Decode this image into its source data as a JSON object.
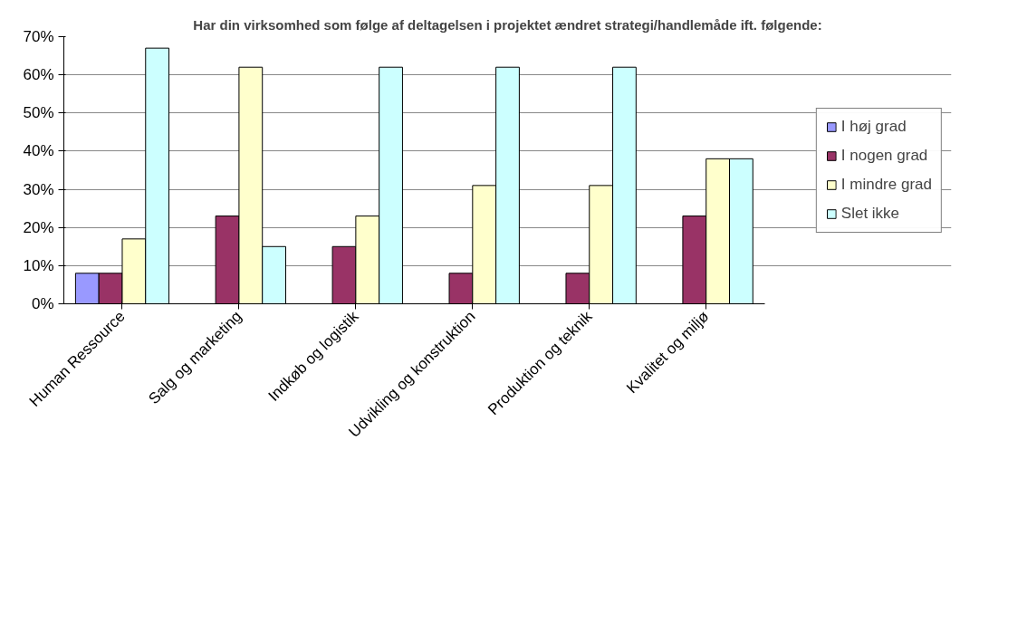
{
  "chart_data": {
    "type": "bar",
    "title": "Har din virksomhed som følge af deltagelsen i projektet ændret strategi/handlemåde ift. følgende:",
    "categories": [
      "Human Ressource",
      "Salg og marketing",
      "Indkøb og logistik",
      "Udvikling og konstruktion",
      "Produktion og teknik",
      "Kvalitet og miljø"
    ],
    "series": [
      {
        "name": "I høj grad",
        "color": "#9999ff",
        "values": [
          8,
          0,
          0,
          0,
          0,
          0
        ]
      },
      {
        "name": "I nogen grad",
        "color": "#993366",
        "values": [
          8,
          23,
          15,
          8,
          8,
          23
        ]
      },
      {
        "name": "I mindre grad",
        "color": "#ffffcc",
        "values": [
          17,
          62,
          23,
          31,
          31,
          38
        ]
      },
      {
        "name": "Slet ikke",
        "color": "#ccffff",
        "values": [
          67,
          15,
          62,
          62,
          62,
          38
        ]
      }
    ],
    "ylim": [
      0,
      70
    ],
    "yticks": [
      {
        "value": 0,
        "label": "0%"
      },
      {
        "value": 10,
        "label": "10%"
      },
      {
        "value": 20,
        "label": "20%"
      },
      {
        "value": 30,
        "label": "30%"
      },
      {
        "value": 40,
        "label": "40%"
      },
      {
        "value": 50,
        "label": "50%"
      },
      {
        "value": 60,
        "label": "60%"
      },
      {
        "value": 70,
        "label": "70%"
      }
    ],
    "grid": "y",
    "legend": "right"
  }
}
